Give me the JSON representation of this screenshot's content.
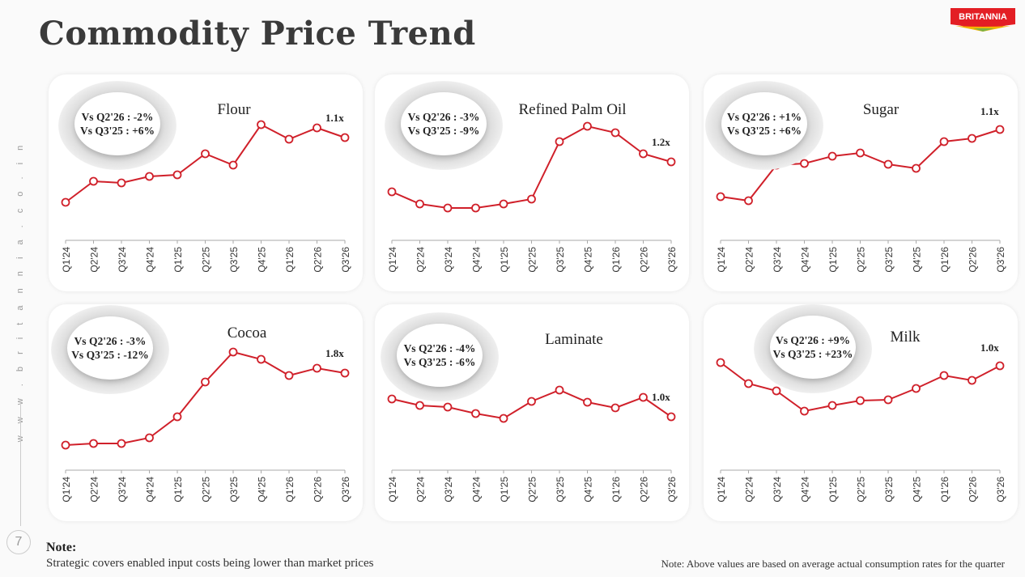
{
  "title": "Commodity Price Trend",
  "logo_text": "BRITANNIA",
  "side_text": "w w w . b r i t a n n i a . c o . i n",
  "page_number": "7",
  "note_heading": "Note:",
  "note_text": "Strategic covers enabled input costs being lower than market prices",
  "note_right": "Note: Above values are based on average actual consumption rates for the quarter",
  "colors": {
    "line": "#d0202a",
    "accent": "#e31e24"
  },
  "chart_data": [
    {
      "type": "line",
      "title": "Flour",
      "categories": [
        "Q1'24",
        "Q2'24",
        "Q3'24",
        "Q4'24",
        "Q1'25",
        "Q2'25",
        "Q3'25",
        "Q4'25",
        "Q1'26",
        "Q2'26",
        "Q3'26"
      ],
      "values": [
        52,
        78,
        76,
        84,
        86,
        112,
        98,
        148,
        130,
        144,
        132
      ],
      "ylim": [
        0,
        160
      ],
      "ylabel": "relative price index (unlabeled)",
      "end_label": "1.1x",
      "callout": [
        "Vs Q2'26 : -2%",
        "Vs Q3'25 : +6%"
      ]
    },
    {
      "type": "line",
      "title": "Refined Palm Oil",
      "categories": [
        "Q1'24",
        "Q2'24",
        "Q3'24",
        "Q4'24",
        "Q1'25",
        "Q2'25",
        "Q3'25",
        "Q4'25",
        "Q1'26",
        "Q2'26",
        "Q3'26"
      ],
      "values": [
        65,
        50,
        45,
        45,
        50,
        56,
        127,
        146,
        138,
        112,
        102
      ],
      "ylim": [
        0,
        160
      ],
      "ylabel": "relative price index (unlabeled)",
      "end_label": "1.2x",
      "callout": [
        "Vs Q2'26 : -3%",
        "Vs Q3'25 : -9%"
      ]
    },
    {
      "type": "line",
      "title": "Sugar",
      "categories": [
        "Q1'24",
        "Q2'24",
        "Q3'24",
        "Q4'24",
        "Q1'25",
        "Q2'25",
        "Q3'25",
        "Q4'25",
        "Q1'26",
        "Q2'26",
        "Q3'26"
      ],
      "values": [
        59,
        54,
        98,
        100,
        109,
        113,
        99,
        94,
        127,
        131,
        142
      ],
      "ylim": [
        0,
        160
      ],
      "ylabel": "relative price index (unlabeled)",
      "end_label": "1.1x",
      "callout": [
        "Vs Q2'26 : +1%",
        "Vs Q3'25 : +6%"
      ]
    },
    {
      "type": "line",
      "title": "Cocoa",
      "categories": [
        "Q1'24",
        "Q2'24",
        "Q3'24",
        "Q4'24",
        "Q1'25",
        "Q2'25",
        "Q3'25",
        "Q4'25",
        "Q1'26",
        "Q2'26",
        "Q3'26"
      ],
      "values": [
        36,
        38,
        38,
        45,
        71,
        114,
        151,
        142,
        122,
        131,
        125
      ],
      "ylim": [
        0,
        160
      ],
      "ylabel": "relative price index (unlabeled)",
      "end_label": "1.8x",
      "callout": [
        "Vs Q2'26 : -3%",
        "Vs Q3'25 : -12%"
      ]
    },
    {
      "type": "line",
      "title": "Laminate",
      "categories": [
        "Q1'24",
        "Q2'24",
        "Q3'24",
        "Q4'24",
        "Q1'25",
        "Q2'25",
        "Q3'25",
        "Q4'25",
        "Q1'26",
        "Q2'26",
        "Q3'26"
      ],
      "values": [
        93,
        85,
        83,
        75,
        69,
        90,
        104,
        89,
        82,
        95,
        71
      ],
      "ylim": [
        0,
        160
      ],
      "ylabel": "relative price index (unlabeled)",
      "end_label": "1.0x",
      "callout": [
        "Vs Q2'26 : -4%",
        "Vs Q3'25 : -6%"
      ]
    },
    {
      "type": "line",
      "title": "Milk",
      "categories": [
        "Q1'24",
        "Q2'24",
        "Q3'24",
        "Q4'24",
        "Q1'25",
        "Q2'25",
        "Q3'25",
        "Q4'25",
        "Q1'26",
        "Q2'26",
        "Q3'26"
      ],
      "values": [
        138,
        112,
        103,
        78,
        85,
        91,
        92,
        106,
        122,
        116,
        134
      ],
      "ylim": [
        0,
        160
      ],
      "ylabel": "relative price index (unlabeled)",
      "end_label": "1.0x",
      "callout": [
        "Vs Q2'26 : +9%",
        "Vs Q3'25 : +23%"
      ]
    }
  ]
}
